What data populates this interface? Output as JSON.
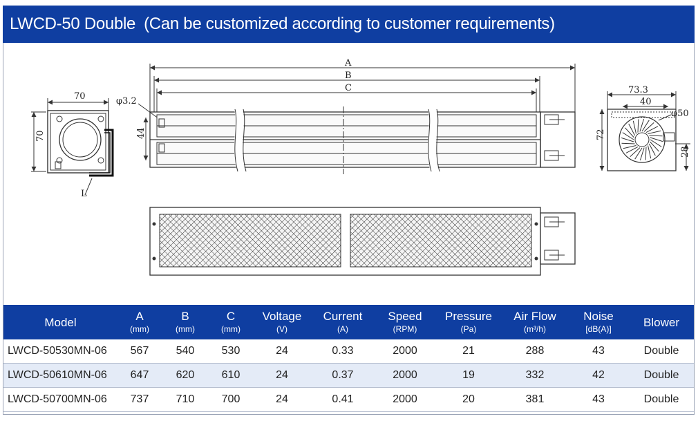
{
  "title": {
    "model": "LWCD-50 Double",
    "note": "(Can be customized according to customer requirements)"
  },
  "drawing": {
    "left_view": {
      "width": "70",
      "height": "70",
      "label_l": "L"
    },
    "front_view": {
      "dim_a": "A",
      "dim_b": "B",
      "dim_c": "C",
      "hole": "φ3.2",
      "height": "44"
    },
    "right_view": {
      "width_outer": "73.3",
      "width_inner": "40",
      "diameter": "φ50",
      "height": "72",
      "offset": "28"
    }
  },
  "table": {
    "headers": [
      {
        "main": "Model",
        "unit": ""
      },
      {
        "main": "A",
        "unit": "(mm)"
      },
      {
        "main": "B",
        "unit": "(mm)"
      },
      {
        "main": "C",
        "unit": "(mm)"
      },
      {
        "main": "Voltage",
        "unit": "(V)"
      },
      {
        "main": "Current",
        "unit": "(A)"
      },
      {
        "main": "Speed",
        "unit": "(RPM)"
      },
      {
        "main": "Pressure",
        "unit": "(Pa)"
      },
      {
        "main": "Air Flow",
        "unit": "(m³/h)"
      },
      {
        "main": "Noise",
        "unit": "[dB(A)]"
      },
      {
        "main": "Blower",
        "unit": ""
      }
    ],
    "rows": [
      [
        "LWCD-50530MN-06",
        "567",
        "540",
        "530",
        "24",
        "0.33",
        "2000",
        "21",
        "288",
        "43",
        "Double"
      ],
      [
        "LWCD-50610MN-06",
        "647",
        "620",
        "610",
        "24",
        "0.37",
        "2000",
        "19",
        "332",
        "42",
        "Double"
      ],
      [
        "LWCD-50700MN-06",
        "737",
        "710",
        "700",
        "24",
        "0.41",
        "2000",
        "20",
        "381",
        "43",
        "Double"
      ]
    ]
  }
}
